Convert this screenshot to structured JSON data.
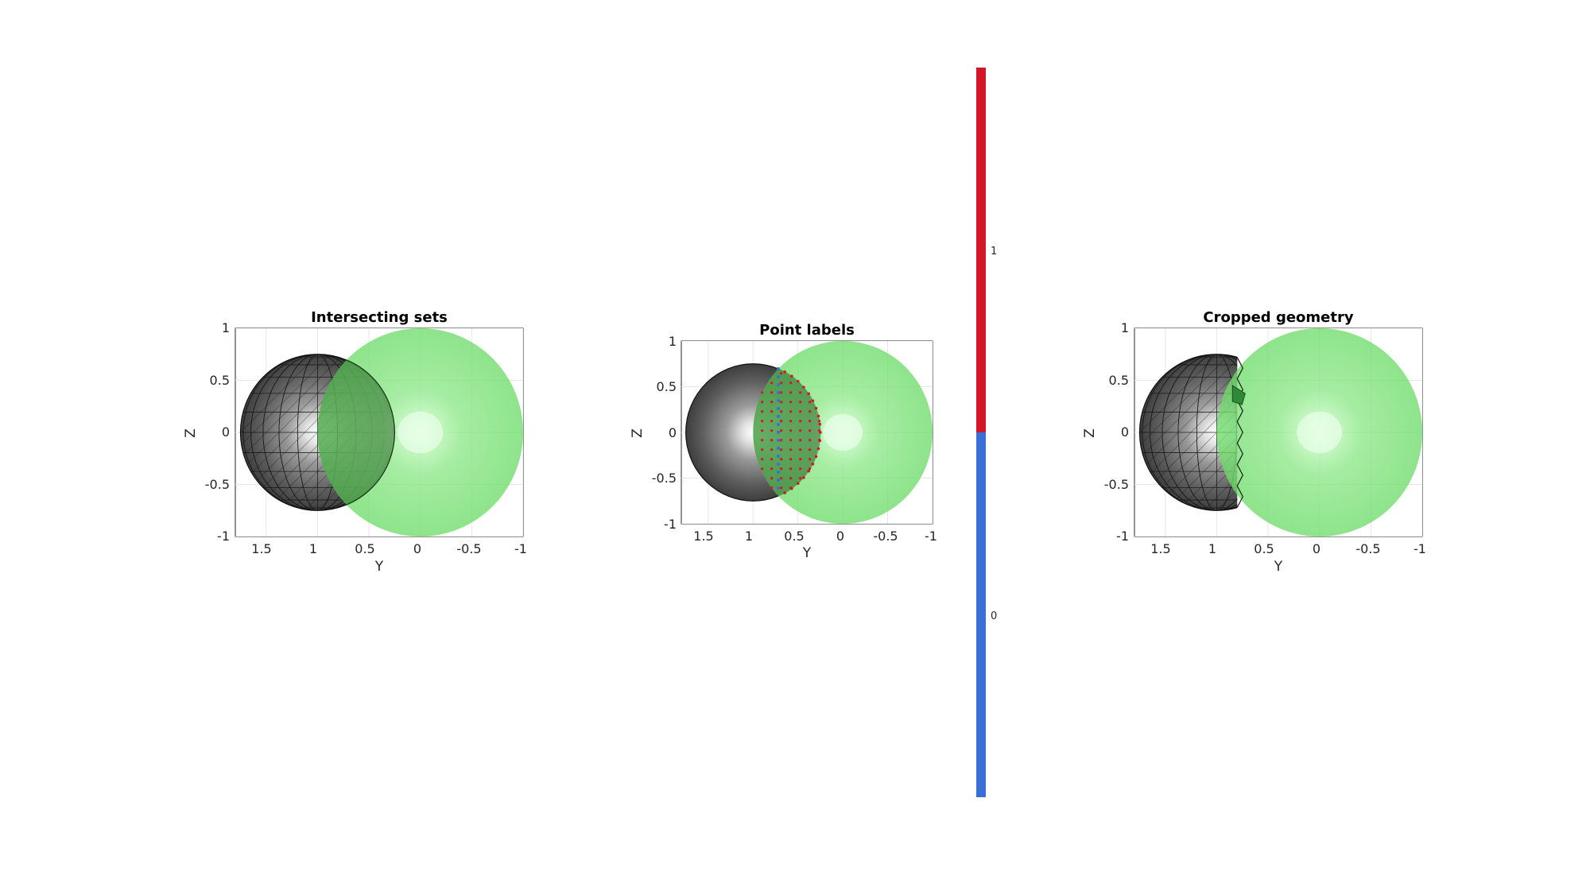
{
  "chart_data": [
    {
      "type": "scatter",
      "title": "Intersecting sets",
      "xlabel": "Y",
      "ylabel": "Z",
      "xlim": [
        1.8,
        -1
      ],
      "ylim": [
        -1,
        1
      ],
      "x_reversed": true,
      "xticks": [
        "1.5",
        "1",
        "0.5",
        "0",
        "-0.5",
        "-1"
      ],
      "yticks": [
        "-1",
        "-0.5",
        "0",
        "0.5",
        "1"
      ],
      "grid": true,
      "objects": [
        {
          "name": "",
          "shape": "sphere",
          "center_y": 0,
          "center_z": 0,
          "radius": 1,
          "color": "#5ad15a",
          "style": "transparent"
        },
        {
          "name": "",
          "shape": "sphere",
          "center_y": 1,
          "center_z": 0,
          "radius": 0.75,
          "color": "#505050",
          "style": "wireframe"
        }
      ]
    },
    {
      "type": "scatter",
      "title": "Point labels",
      "xlabel": "Y",
      "ylabel": "Z",
      "xlim": [
        1.8,
        -1
      ],
      "ylim": [
        -1,
        1
      ],
      "x_reversed": true,
      "xticks": [
        "1.5",
        "1",
        "0.5",
        "0",
        "-0.5",
        "-1"
      ],
      "yticks": [
        "-1",
        "-0.5",
        "0",
        "0.5",
        "1"
      ],
      "grid": true,
      "objects": [
        {
          "name": "",
          "shape": "sphere",
          "center_y": 0,
          "center_z": 0,
          "radius": 1,
          "color": "#5ad15a",
          "style": "transparent"
        },
        {
          "name": "",
          "shape": "sphere",
          "center_y": 1,
          "center_z": 0,
          "radius": 0.75,
          "color": "#505050",
          "style": "shaded"
        }
      ],
      "point_labels": [
        {
          "label": 1,
          "color": "#d41728",
          "region": "inside large sphere"
        },
        {
          "label": 0,
          "color": "#3a6fd8",
          "region": "boundary"
        }
      ],
      "colorbar": {
        "ticks": [
          "1",
          "0"
        ],
        "colors": [
          "#d41728",
          "#3a6fd8"
        ],
        "range": [
          0,
          1
        ]
      }
    },
    {
      "type": "scatter",
      "title": "Cropped geometry",
      "xlabel": "Y",
      "ylabel": "Z",
      "xlim": [
        1.8,
        -1
      ],
      "ylim": [
        -1,
        1
      ],
      "x_reversed": true,
      "xticks": [
        "1.5",
        "1",
        "0.5",
        "0",
        "-0.5",
        "-1"
      ],
      "yticks": [
        "-1",
        "-0.5",
        "0",
        "0.5",
        "1"
      ],
      "grid": true,
      "objects": [
        {
          "name": "",
          "shape": "sphere",
          "center_y": 0,
          "center_z": 0,
          "radius": 1,
          "color": "#5ad15a",
          "style": "transparent"
        },
        {
          "name": "",
          "shape": "sphere",
          "center_y": 1,
          "center_z": 0,
          "radius": 0.75,
          "color": "#505050",
          "style": "wireframe",
          "cropped_at_y": 0.8
        }
      ]
    }
  ]
}
